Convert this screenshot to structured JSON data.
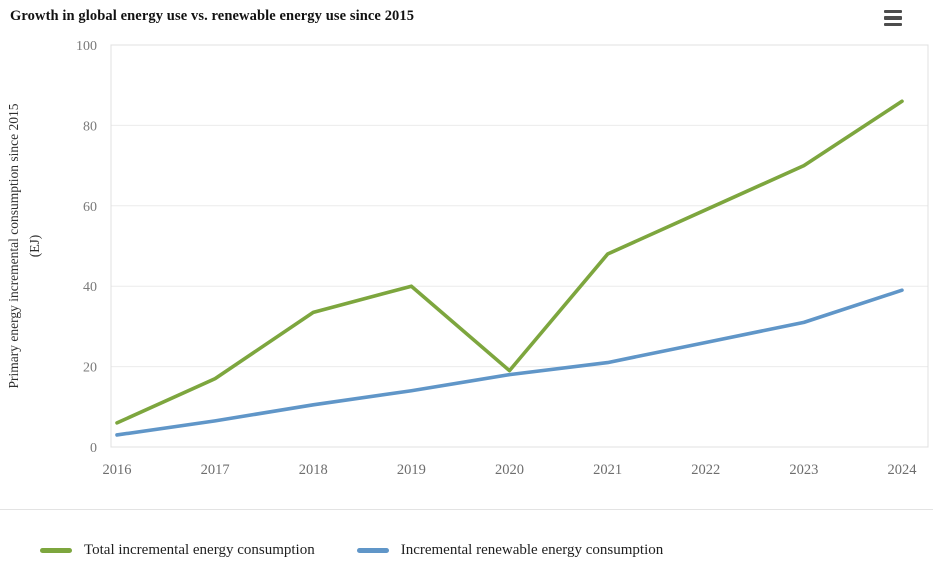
{
  "header": {
    "title": "Growth in global energy use vs. renewable energy use since 2015"
  },
  "chart_data": {
    "type": "line",
    "title": "Growth in global energy use vs. renewable energy use since 2015",
    "x_labels": [
      "2016",
      "2017",
      "2018",
      "2019",
      "2020",
      "2021",
      "2022",
      "2023",
      "2024"
    ],
    "series": [
      {
        "name": "Total incremental energy consumption",
        "color": "#7da63e",
        "values": [
          6,
          17,
          33.5,
          40,
          19,
          48,
          59,
          70,
          86
        ]
      },
      {
        "name": "Incremental renewable energy consumption",
        "color": "#6096c8",
        "values": [
          3,
          6.5,
          10.5,
          14,
          18,
          21,
          26,
          31,
          39
        ]
      }
    ],
    "ylabel": "Primary energy incremental consumption since 2015",
    "ylabel_unit": "(EJ)",
    "ylim": [
      0,
      100
    ],
    "yticks": [
      0,
      20,
      40,
      60,
      80,
      100
    ],
    "grid": true,
    "legend_position": "bottom"
  },
  "colors": {
    "grid": "#ebebeb",
    "plot_border": "#e0e0e0",
    "divider": "#e3e3e3",
    "menu_icon": "#4d4d4d"
  }
}
